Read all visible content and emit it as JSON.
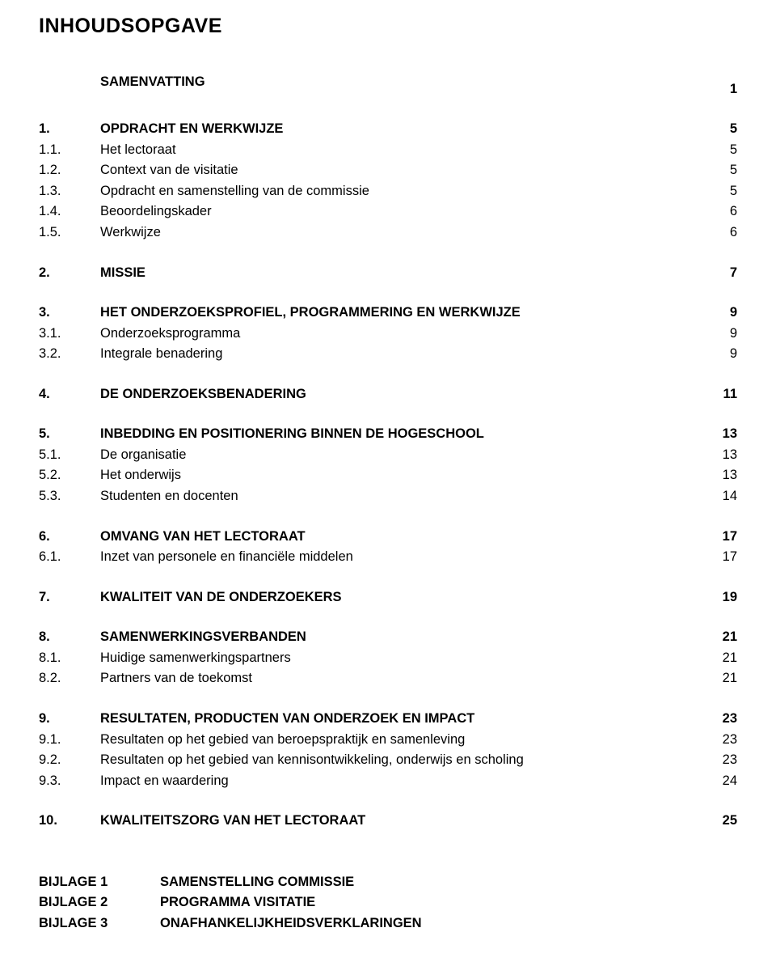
{
  "title": "INHOUDSOPGAVE",
  "toc": [
    {
      "num": "",
      "label": "SAMENVATTING",
      "page": "1",
      "bold": true,
      "gapAfter": true
    },
    {
      "num": "1.",
      "label": "OPDRACHT EN WERKWIJZE",
      "page": "5",
      "bold": true
    },
    {
      "num": "1.1.",
      "label": "Het lectoraat",
      "page": "5"
    },
    {
      "num": "1.2.",
      "label": "Context van de visitatie",
      "page": "5"
    },
    {
      "num": "1.3.",
      "label": "Opdracht en samenstelling van de commissie",
      "page": "5"
    },
    {
      "num": "1.4.",
      "label": "Beoordelingskader",
      "page": "6"
    },
    {
      "num": "1.5.",
      "label": "Werkwijze",
      "page": "6",
      "gapAfter": true
    },
    {
      "num": "2.",
      "label": "MISSIE",
      "page": "7",
      "bold": true,
      "gapAfter": true
    },
    {
      "num": "3.",
      "label": "HET ONDERZOEKSPROFIEL, PROGRAMMERING EN WERKWIJZE",
      "page": "9",
      "bold": true
    },
    {
      "num": "3.1.",
      "label": "Onderzoeksprogramma",
      "page": "9"
    },
    {
      "num": "3.2.",
      "label": "Integrale benadering",
      "page": "9",
      "gapAfter": true
    },
    {
      "num": "4.",
      "label": "DE ONDERZOEKSBENADERING",
      "page": "11",
      "bold": true,
      "gapAfter": true
    },
    {
      "num": "5.",
      "label": "INBEDDING EN POSITIONERING BINNEN DE HOGESCHOOL",
      "page": "13",
      "bold": true
    },
    {
      "num": "5.1.",
      "label": "De organisatie",
      "page": "13"
    },
    {
      "num": "5.2.",
      "label": "Het onderwijs",
      "page": "13"
    },
    {
      "num": "5.3.",
      "label": "Studenten en docenten",
      "page": "14",
      "gapAfter": true
    },
    {
      "num": "6.",
      "label": "OMVANG VAN HET LECTORAAT",
      "page": "17",
      "bold": true
    },
    {
      "num": "6.1.",
      "label": "Inzet van personele en financiële middelen",
      "page": "17",
      "gapAfter": true
    },
    {
      "num": "7.",
      "label": "KWALITEIT VAN DE ONDERZOEKERS",
      "page": "19",
      "bold": true,
      "gapAfter": true
    },
    {
      "num": "8.",
      "label": "SAMENWERKINGSVERBANDEN",
      "page": "21",
      "bold": true
    },
    {
      "num": "8.1.",
      "label": "Huidige samenwerkingspartners",
      "page": "21"
    },
    {
      "num": "8.2.",
      "label": "Partners van de toekomst",
      "page": "21",
      "gapAfter": true
    },
    {
      "num": "9.",
      "label": "RESULTATEN, PRODUCTEN VAN ONDERZOEK EN IMPACT",
      "page": "23",
      "bold": true
    },
    {
      "num": "9.1.",
      "label": "Resultaten op het gebied van beroepspraktijk en samenleving",
      "page": "23"
    },
    {
      "num": "9.2.",
      "label": "Resultaten op het gebied van kennisontwikkeling, onderwijs en scholing",
      "page": "23"
    },
    {
      "num": "9.3.",
      "label": "Impact en waardering",
      "page": "24",
      "gapAfter": true
    },
    {
      "num": "10.",
      "label": "KWALITEITSZORG VAN HET LECTORAAT",
      "page": "25",
      "bold": true
    }
  ],
  "bijlagen": [
    {
      "num": "BIJLAGE 1",
      "label": "SAMENSTELLING COMMISSIE"
    },
    {
      "num": "BIJLAGE 2",
      "label": "PROGRAMMA VISITATIE"
    },
    {
      "num": "BIJLAGE 3",
      "label": "ONAFHANKELIJKHEIDSVERKLARINGEN"
    }
  ]
}
